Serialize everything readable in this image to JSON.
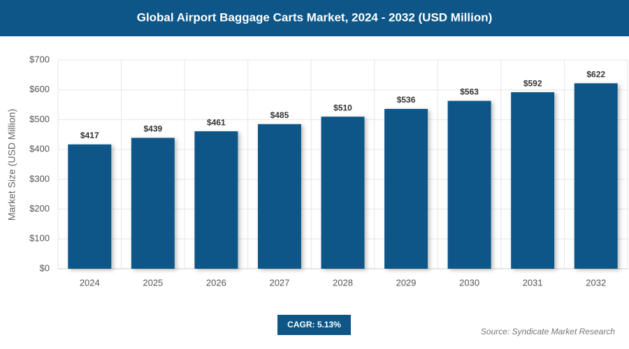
{
  "chart_data": {
    "type": "bar",
    "title": "Global Airport Baggage Carts Market, 2024 - 2032 (USD Million)",
    "y_label": "Market Size (USD Million)",
    "categories": [
      "2024",
      "2025",
      "2026",
      "2027",
      "2028",
      "2029",
      "2030",
      "2031",
      "2032"
    ],
    "values": [
      417,
      439,
      461,
      485,
      510,
      536,
      563,
      592,
      622
    ],
    "value_labels": [
      "$417",
      "$439",
      "$461",
      "$485",
      "$510",
      "$536",
      "$563",
      "$592",
      "$622"
    ],
    "color": "#0d5687",
    "ylim": [
      0,
      700
    ],
    "yticks": [
      {
        "value": 0,
        "label": "$0"
      },
      {
        "value": 100,
        "label": "$100"
      },
      {
        "value": 200,
        "label": "$200"
      },
      {
        "value": 300,
        "label": "$300"
      },
      {
        "value": 400,
        "label": "$400"
      },
      {
        "value": 500,
        "label": "$500"
      },
      {
        "value": 600,
        "label": "$600"
      },
      {
        "value": 700,
        "label": "$700"
      }
    ],
    "grid": true,
    "cagr_label": "CAGR: 5.13%",
    "source": "Source: Syndicate Market Research"
  }
}
